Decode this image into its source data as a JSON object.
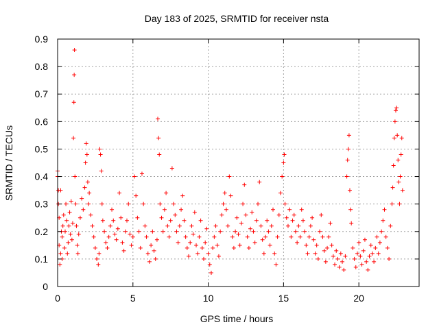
{
  "chart_data": {
    "type": "scatter",
    "title": "Day 183 of 2025, SRMTID for receiver nsta",
    "xlabel": "GPS time / hours",
    "ylabel": "SRMTID / TECUs",
    "xlim": [
      0,
      24
    ],
    "ylim": [
      0,
      0.9
    ],
    "xticks": [
      0,
      5,
      10,
      15,
      20
    ],
    "xtick_labels": [
      "0",
      "5",
      "10",
      "15",
      "20"
    ],
    "yticks": [
      0,
      0.1,
      0.2,
      0.3,
      0.4,
      0.5,
      0.6,
      0.7,
      0.8,
      0.9
    ],
    "ytick_labels": [
      "0",
      "0.1",
      "0.2",
      "0.3",
      "0.4",
      "0.5",
      "0.6",
      "0.7",
      "0.8",
      "0.9"
    ],
    "grid": true,
    "marker": "plus",
    "color": "#ff0000",
    "series": [
      {
        "name": "SRMTID",
        "points": [
          [
            0.0,
            0.42
          ],
          [
            0.0,
            0.4
          ],
          [
            0.05,
            0.35
          ],
          [
            0.05,
            0.3
          ],
          [
            0.1,
            0.25
          ],
          [
            0.1,
            0.15
          ],
          [
            0.15,
            0.08
          ],
          [
            0.2,
            0.12
          ],
          [
            0.2,
            0.35
          ],
          [
            0.25,
            0.2
          ],
          [
            0.3,
            0.18
          ],
          [
            0.3,
            0.1
          ],
          [
            0.35,
            0.22
          ],
          [
            0.4,
            0.26
          ],
          [
            0.45,
            0.14
          ],
          [
            0.5,
            0.2
          ],
          [
            0.55,
            0.3
          ],
          [
            0.6,
            0.24
          ],
          [
            0.65,
            0.12
          ],
          [
            0.7,
            0.16
          ],
          [
            0.75,
            0.22
          ],
          [
            0.8,
            0.27
          ],
          [
            0.85,
            0.19
          ],
          [
            0.9,
            0.31
          ],
          [
            0.95,
            0.17
          ],
          [
            1.0,
            0.23
          ],
          [
            1.05,
            0.54
          ],
          [
            1.08,
            0.67
          ],
          [
            1.1,
            0.77
          ],
          [
            1.12,
            0.86
          ],
          [
            1.15,
            0.4
          ],
          [
            1.2,
            0.3
          ],
          [
            1.25,
            0.22
          ],
          [
            1.3,
            0.15
          ],
          [
            1.35,
            0.12
          ],
          [
            1.4,
            0.19
          ],
          [
            1.5,
            0.25
          ],
          [
            1.6,
            0.32
          ],
          [
            1.7,
            0.28
          ],
          [
            1.8,
            0.36
          ],
          [
            1.85,
            0.45
          ],
          [
            1.9,
            0.52
          ],
          [
            1.95,
            0.48
          ],
          [
            2.0,
            0.38
          ],
          [
            2.05,
            0.3
          ],
          [
            2.1,
            0.34
          ],
          [
            2.2,
            0.26
          ],
          [
            2.3,
            0.22
          ],
          [
            2.4,
            0.18
          ],
          [
            2.5,
            0.14
          ],
          [
            2.6,
            0.1
          ],
          [
            2.7,
            0.08
          ],
          [
            2.75,
            0.12
          ],
          [
            2.8,
            0.5
          ],
          [
            2.85,
            0.48
          ],
          [
            2.9,
            0.42
          ],
          [
            2.95,
            0.3
          ],
          [
            3.0,
            0.24
          ],
          [
            3.1,
            0.2
          ],
          [
            3.2,
            0.16
          ],
          [
            3.3,
            0.14
          ],
          [
            3.4,
            0.18
          ],
          [
            3.5,
            0.22
          ],
          [
            3.6,
            0.28
          ],
          [
            3.7,
            0.24
          ],
          [
            3.8,
            0.19
          ],
          [
            3.9,
            0.17
          ],
          [
            4.0,
            0.21
          ],
          [
            4.1,
            0.34
          ],
          [
            4.2,
            0.25
          ],
          [
            4.3,
            0.16
          ],
          [
            4.4,
            0.13
          ],
          [
            4.5,
            0.2
          ],
          [
            4.6,
            0.24
          ],
          [
            4.7,
            0.3
          ],
          [
            4.8,
            0.19
          ],
          [
            4.9,
            0.15
          ],
          [
            5.0,
            0.18
          ],
          [
            5.1,
            0.4
          ],
          [
            5.2,
            0.33
          ],
          [
            5.3,
            0.25
          ],
          [
            5.4,
            0.2
          ],
          [
            5.5,
            0.14
          ],
          [
            5.6,
            0.41
          ],
          [
            5.7,
            0.3
          ],
          [
            5.8,
            0.22
          ],
          [
            5.9,
            0.18
          ],
          [
            6.0,
            0.12
          ],
          [
            6.1,
            0.09
          ],
          [
            6.2,
            0.15
          ],
          [
            6.3,
            0.2
          ],
          [
            6.4,
            0.13
          ],
          [
            6.5,
            0.1
          ],
          [
            6.6,
            0.17
          ],
          [
            6.65,
            0.61
          ],
          [
            6.7,
            0.54
          ],
          [
            6.75,
            0.48
          ],
          [
            6.8,
            0.3
          ],
          [
            6.9,
            0.25
          ],
          [
            7.0,
            0.2
          ],
          [
            7.1,
            0.28
          ],
          [
            7.2,
            0.34
          ],
          [
            7.3,
            0.22
          ],
          [
            7.4,
            0.18
          ],
          [
            7.5,
            0.24
          ],
          [
            7.6,
            0.43
          ],
          [
            7.7,
            0.3
          ],
          [
            7.8,
            0.26
          ],
          [
            7.9,
            0.2
          ],
          [
            8.0,
            0.16
          ],
          [
            8.1,
            0.22
          ],
          [
            8.2,
            0.28
          ],
          [
            8.3,
            0.33
          ],
          [
            8.4,
            0.24
          ],
          [
            8.5,
            0.18
          ],
          [
            8.6,
            0.14
          ],
          [
            8.7,
            0.11
          ],
          [
            8.8,
            0.16
          ],
          [
            8.9,
            0.22
          ],
          [
            9.0,
            0.19
          ],
          [
            9.1,
            0.27
          ],
          [
            9.2,
            0.15
          ],
          [
            9.3,
            0.12
          ],
          [
            9.4,
            0.18
          ],
          [
            9.5,
            0.24
          ],
          [
            9.6,
            0.14
          ],
          [
            9.7,
            0.1
          ],
          [
            9.8,
            0.16
          ],
          [
            9.9,
            0.21
          ],
          [
            10.0,
            0.12
          ],
          [
            10.1,
            0.08
          ],
          [
            10.2,
            0.05
          ],
          [
            10.3,
            0.14
          ],
          [
            10.4,
            0.18
          ],
          [
            10.5,
            0.22
          ],
          [
            10.6,
            0.15
          ],
          [
            10.7,
            0.11
          ],
          [
            10.8,
            0.2
          ],
          [
            10.9,
            0.26
          ],
          [
            11.0,
            0.3
          ],
          [
            11.1,
            0.34
          ],
          [
            11.2,
            0.28
          ],
          [
            11.3,
            0.22
          ],
          [
            11.4,
            0.4
          ],
          [
            11.5,
            0.33
          ],
          [
            11.6,
            0.18
          ],
          [
            11.7,
            0.14
          ],
          [
            11.8,
            0.2
          ],
          [
            11.9,
            0.25
          ],
          [
            12.0,
            0.19
          ],
          [
            12.1,
            0.15
          ],
          [
            12.2,
            0.23
          ],
          [
            12.3,
            0.3
          ],
          [
            12.4,
            0.37
          ],
          [
            12.5,
            0.26
          ],
          [
            12.6,
            0.18
          ],
          [
            12.7,
            0.14
          ],
          [
            12.8,
            0.21
          ],
          [
            12.9,
            0.27
          ],
          [
            13.0,
            0.2
          ],
          [
            13.1,
            0.16
          ],
          [
            13.2,
            0.24
          ],
          [
            13.3,
            0.3
          ],
          [
            13.4,
            0.38
          ],
          [
            13.5,
            0.22
          ],
          [
            13.6,
            0.17
          ],
          [
            13.7,
            0.12
          ],
          [
            13.8,
            0.18
          ],
          [
            13.9,
            0.24
          ],
          [
            14.0,
            0.2
          ],
          [
            14.1,
            0.15
          ],
          [
            14.2,
            0.22
          ],
          [
            14.3,
            0.28
          ],
          [
            14.4,
            0.12
          ],
          [
            14.5,
            0.08
          ],
          [
            14.6,
            0.18
          ],
          [
            14.7,
            0.26
          ],
          [
            14.8,
            0.34
          ],
          [
            14.9,
            0.4
          ],
          [
            15.0,
            0.45
          ],
          [
            15.05,
            0.48
          ],
          [
            15.1,
            0.3
          ],
          [
            15.2,
            0.25
          ],
          [
            15.3,
            0.22
          ],
          [
            15.4,
            0.28
          ],
          [
            15.5,
            0.18
          ],
          [
            15.6,
            0.24
          ],
          [
            15.7,
            0.26
          ],
          [
            15.8,
            0.2
          ],
          [
            15.9,
            0.16
          ],
          [
            16.0,
            0.22
          ],
          [
            16.1,
            0.18
          ],
          [
            16.2,
            0.28
          ],
          [
            16.3,
            0.24
          ],
          [
            16.4,
            0.2
          ],
          [
            16.5,
            0.15
          ],
          [
            16.6,
            0.12
          ],
          [
            16.7,
            0.18
          ],
          [
            16.8,
            0.22
          ],
          [
            16.9,
            0.25
          ],
          [
            17.0,
            0.17
          ],
          [
            17.1,
            0.12
          ],
          [
            17.2,
            0.15
          ],
          [
            17.3,
            0.1
          ],
          [
            17.4,
            0.2
          ],
          [
            17.5,
            0.26
          ],
          [
            17.6,
            0.18
          ],
          [
            17.7,
            0.13
          ],
          [
            17.8,
            0.09
          ],
          [
            17.9,
            0.14
          ],
          [
            18.0,
            0.18
          ],
          [
            18.1,
            0.23
          ],
          [
            18.2,
            0.15
          ],
          [
            18.3,
            0.11
          ],
          [
            18.4,
            0.08
          ],
          [
            18.5,
            0.13
          ],
          [
            18.6,
            0.1
          ],
          [
            18.7,
            0.07
          ],
          [
            18.8,
            0.12
          ],
          [
            18.9,
            0.09
          ],
          [
            19.0,
            0.06
          ],
          [
            19.1,
            0.11
          ],
          [
            19.2,
            0.4
          ],
          [
            19.25,
            0.46
          ],
          [
            19.3,
            0.5
          ],
          [
            19.35,
            0.55
          ],
          [
            19.4,
            0.35
          ],
          [
            19.45,
            0.28
          ],
          [
            19.5,
            0.23
          ],
          [
            19.6,
            0.14
          ],
          [
            19.7,
            0.1
          ],
          [
            19.8,
            0.07
          ],
          [
            19.9,
            0.12
          ],
          [
            20.0,
            0.16
          ],
          [
            20.1,
            0.11
          ],
          [
            20.2,
            0.08
          ],
          [
            20.3,
            0.13
          ],
          [
            20.4,
            0.17
          ],
          [
            20.5,
            0.09
          ],
          [
            20.6,
            0.06
          ],
          [
            20.7,
            0.11
          ],
          [
            20.8,
            0.15
          ],
          [
            20.9,
            0.12
          ],
          [
            21.0,
            0.09
          ],
          [
            21.1,
            0.14
          ],
          [
            21.2,
            0.18
          ],
          [
            21.3,
            0.12
          ],
          [
            21.4,
            0.16
          ],
          [
            21.5,
            0.2
          ],
          [
            21.6,
            0.24
          ],
          [
            21.7,
            0.28
          ],
          [
            21.8,
            0.18
          ],
          [
            21.9,
            0.14
          ],
          [
            22.0,
            0.1
          ],
          [
            22.1,
            0.22
          ],
          [
            22.2,
            0.3
          ],
          [
            22.25,
            0.36
          ],
          [
            22.3,
            0.44
          ],
          [
            22.35,
            0.54
          ],
          [
            22.4,
            0.6
          ],
          [
            22.45,
            0.64
          ],
          [
            22.5,
            0.65
          ],
          [
            22.55,
            0.55
          ],
          [
            22.6,
            0.46
          ],
          [
            22.65,
            0.38
          ],
          [
            22.7,
            0.3
          ],
          [
            22.75,
            0.4
          ],
          [
            22.8,
            0.48
          ],
          [
            22.85,
            0.54
          ],
          [
            22.9,
            0.35
          ]
        ]
      }
    ]
  }
}
